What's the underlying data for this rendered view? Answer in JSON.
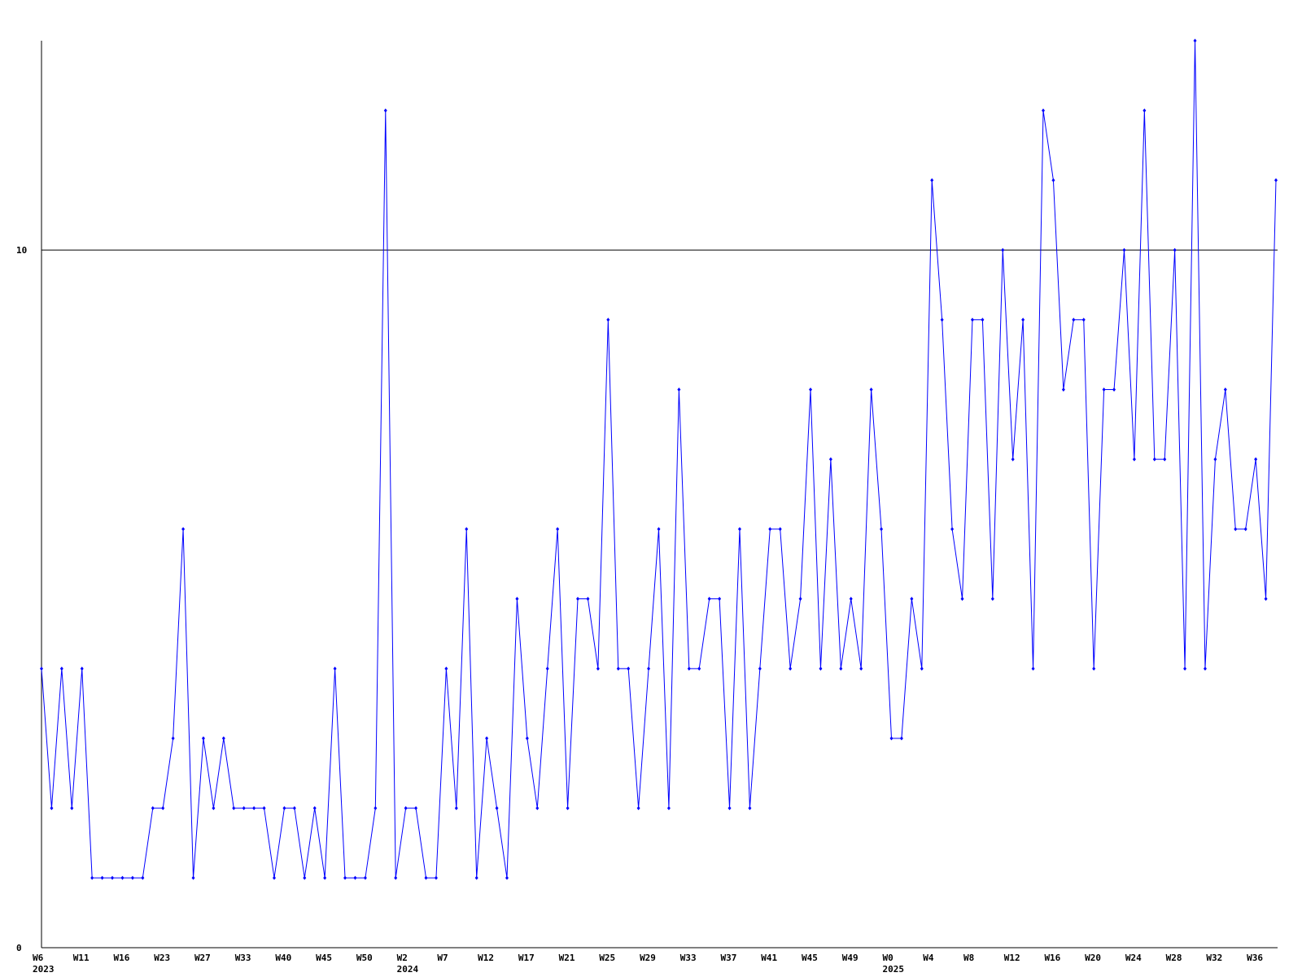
{
  "chart_data": {
    "type": "line",
    "categories": [
      "W6\n2023",
      null,
      null,
      null,
      "W11",
      null,
      null,
      null,
      "W16",
      null,
      null,
      null,
      "W23",
      null,
      null,
      null,
      "W27",
      null,
      null,
      null,
      "W33",
      null,
      null,
      null,
      "W40",
      null,
      null,
      null,
      "W45",
      null,
      null,
      null,
      "W50",
      null,
      null,
      null,
      "W2\n2024",
      null,
      null,
      null,
      "W7",
      null,
      null,
      null,
      "W12",
      null,
      null,
      null,
      "W17",
      null,
      null,
      null,
      "W21",
      null,
      null,
      null,
      "W25",
      null,
      null,
      null,
      "W29",
      null,
      null,
      null,
      "W33",
      null,
      null,
      null,
      "W37",
      null,
      null,
      null,
      "W41",
      null,
      null,
      null,
      "W45",
      null,
      null,
      null,
      "W49",
      null,
      null,
      null,
      "W0\n2025",
      null,
      null,
      null,
      "W4",
      null,
      null,
      null,
      "W8",
      null,
      null,
      null,
      "W12",
      null,
      null,
      null,
      "W16",
      null,
      null,
      null,
      "W20",
      null,
      null,
      null,
      "W24",
      null,
      null,
      null,
      "W28",
      null,
      null,
      null,
      "W32",
      null,
      null,
      null,
      "W36",
      null,
      null
    ],
    "series": [
      {
        "color": "#0000ff",
        "values": [
          4,
          2,
          4,
          2,
          4,
          1,
          1,
          1,
          1,
          1,
          1,
          2,
          2,
          3,
          6,
          1,
          3,
          2,
          3,
          2,
          2,
          2,
          2,
          1,
          2,
          2,
          1,
          2,
          1,
          4,
          1,
          1,
          1,
          2,
          12,
          1,
          2,
          2,
          1,
          1,
          4,
          2,
          6,
          1,
          3,
          2,
          1,
          5,
          3,
          2,
          4,
          6,
          2,
          5,
          5,
          4,
          9,
          4,
          4,
          2,
          4,
          6,
          2,
          8,
          4,
          4,
          5,
          5,
          2,
          6,
          2,
          4,
          6,
          6,
          4,
          5,
          8,
          4,
          7,
          4,
          5,
          4,
          8,
          6,
          3,
          3,
          5,
          4,
          11,
          9,
          6,
          5,
          9,
          9,
          5,
          10,
          7,
          9,
          4,
          12,
          11,
          8,
          9,
          9,
          4,
          8,
          8,
          10,
          7,
          12,
          7,
          7,
          10,
          4,
          13,
          4,
          7,
          8,
          6,
          6,
          7,
          5,
          11
        ]
      }
    ],
    "ylim": [
      0,
      13
    ],
    "yticks": [
      0,
      10
    ],
    "grid": true
  }
}
